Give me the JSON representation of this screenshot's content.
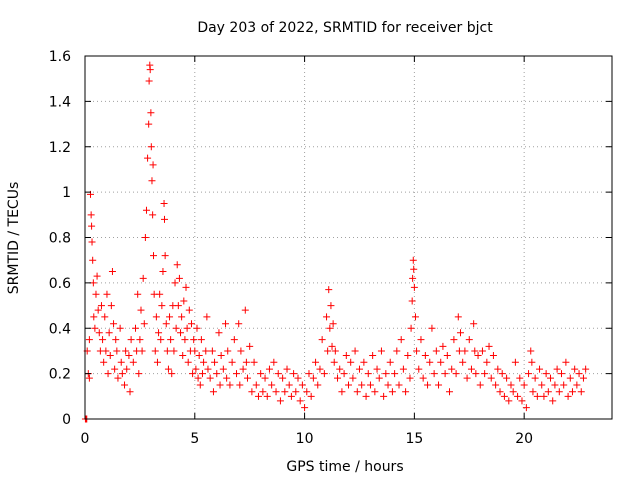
{
  "chart_data": {
    "type": "scatter",
    "title": "Day 203 of 2022, SRMTID for receiver bjct",
    "xlabel": "GPS time / hours",
    "ylabel": "SRMTID / TECUs",
    "xlim": [
      0,
      24
    ],
    "ylim": [
      0,
      1.6
    ],
    "x_ticks": [
      0,
      5,
      10,
      15,
      20
    ],
    "x_tick_labels": [
      "0",
      "5",
      "10",
      "15",
      "20"
    ],
    "y_ticks": [
      0,
      0.2,
      0.4,
      0.6,
      0.8,
      1.0,
      1.2,
      1.4,
      1.6
    ],
    "y_tick_labels": [
      "0",
      "0.2",
      "0.4",
      "0.6",
      "0.8",
      "1",
      "1.2",
      "1.4",
      "1.6"
    ],
    "grid": true,
    "marker": "+",
    "color": "#ff0000",
    "series": [
      {
        "name": "SRMTID",
        "points": [
          [
            0.02,
            0.0
          ],
          [
            0.05,
            0.0
          ],
          [
            0.08,
            0.0
          ],
          [
            0.1,
            0.3
          ],
          [
            0.15,
            0.2
          ],
          [
            0.2,
            0.18
          ],
          [
            0.2,
            0.35
          ],
          [
            0.25,
            0.99
          ],
          [
            0.28,
            0.9
          ],
          [
            0.3,
            0.85
          ],
          [
            0.32,
            0.78
          ],
          [
            0.35,
            0.7
          ],
          [
            0.38,
            0.6
          ],
          [
            0.4,
            0.45
          ],
          [
            0.45,
            0.4
          ],
          [
            0.5,
            0.55
          ],
          [
            0.55,
            0.63
          ],
          [
            0.6,
            0.48
          ],
          [
            0.65,
            0.38
          ],
          [
            0.7,
            0.3
          ],
          [
            0.75,
            0.5
          ],
          [
            0.8,
            0.35
          ],
          [
            0.85,
            0.25
          ],
          [
            0.9,
            0.45
          ],
          [
            0.95,
            0.3
          ],
          [
            1.0,
            0.55
          ],
          [
            1.05,
            0.2
          ],
          [
            1.1,
            0.38
          ],
          [
            1.15,
            0.28
          ],
          [
            1.2,
            0.5
          ],
          [
            1.25,
            0.65
          ],
          [
            1.3,
            0.42
          ],
          [
            1.35,
            0.22
          ],
          [
            1.4,
            0.35
          ],
          [
            1.45,
            0.3
          ],
          [
            1.5,
            0.18
          ],
          [
            1.6,
            0.4
          ],
          [
            1.65,
            0.25
          ],
          [
            1.7,
            0.2
          ],
          [
            1.8,
            0.15
          ],
          [
            1.85,
            0.3
          ],
          [
            1.9,
            0.22
          ],
          [
            2.0,
            0.28
          ],
          [
            2.05,
            0.12
          ],
          [
            2.1,
            0.35
          ],
          [
            2.2,
            0.25
          ],
          [
            2.3,
            0.4
          ],
          [
            2.35,
            0.3
          ],
          [
            2.4,
            0.55
          ],
          [
            2.45,
            0.2
          ],
          [
            2.5,
            0.35
          ],
          [
            2.55,
            0.48
          ],
          [
            2.6,
            0.3
          ],
          [
            2.65,
            0.62
          ],
          [
            2.7,
            0.42
          ],
          [
            2.75,
            0.8
          ],
          [
            2.8,
            0.92
          ],
          [
            2.85,
            1.15
          ],
          [
            2.9,
            1.3
          ],
          [
            2.92,
            1.49
          ],
          [
            2.95,
            1.56
          ],
          [
            2.97,
            1.54
          ],
          [
            3.0,
            1.35
          ],
          [
            3.02,
            1.2
          ],
          [
            3.05,
            1.05
          ],
          [
            3.08,
            0.9
          ],
          [
            3.1,
            1.12
          ],
          [
            3.12,
            0.72
          ],
          [
            3.15,
            0.55
          ],
          [
            3.2,
            0.3
          ],
          [
            3.25,
            0.45
          ],
          [
            3.3,
            0.25
          ],
          [
            3.35,
            0.38
          ],
          [
            3.4,
            0.55
          ],
          [
            3.45,
            0.35
          ],
          [
            3.5,
            0.5
          ],
          [
            3.55,
            0.65
          ],
          [
            3.6,
            0.95
          ],
          [
            3.62,
            0.88
          ],
          [
            3.65,
            0.72
          ],
          [
            3.7,
            0.42
          ],
          [
            3.75,
            0.3
          ],
          [
            3.8,
            0.22
          ],
          [
            3.85,
            0.45
          ],
          [
            3.9,
            0.35
          ],
          [
            3.95,
            0.2
          ],
          [
            4.0,
            0.5
          ],
          [
            4.05,
            0.3
          ],
          [
            4.1,
            0.6
          ],
          [
            4.15,
            0.4
          ],
          [
            4.2,
            0.68
          ],
          [
            4.25,
            0.5
          ],
          [
            4.3,
            0.62
          ],
          [
            4.35,
            0.38
          ],
          [
            4.4,
            0.45
          ],
          [
            4.45,
            0.28
          ],
          [
            4.5,
            0.52
          ],
          [
            4.55,
            0.35
          ],
          [
            4.6,
            0.58
          ],
          [
            4.65,
            0.4
          ],
          [
            4.7,
            0.25
          ],
          [
            4.75,
            0.48
          ],
          [
            4.8,
            0.3
          ],
          [
            4.85,
            0.42
          ],
          [
            4.9,
            0.2
          ],
          [
            4.95,
            0.35
          ],
          [
            5.0,
            0.3
          ],
          [
            5.05,
            0.22
          ],
          [
            5.1,
            0.4
          ],
          [
            5.15,
            0.18
          ],
          [
            5.2,
            0.28
          ],
          [
            5.25,
            0.15
          ],
          [
            5.3,
            0.35
          ],
          [
            5.35,
            0.2
          ],
          [
            5.4,
            0.25
          ],
          [
            5.5,
            0.3
          ],
          [
            5.55,
            0.45
          ],
          [
            5.6,
            0.22
          ],
          [
            5.7,
            0.18
          ],
          [
            5.8,
            0.3
          ],
          [
            5.85,
            0.12
          ],
          [
            5.9,
            0.25
          ],
          [
            6.0,
            0.2
          ],
          [
            6.1,
            0.38
          ],
          [
            6.15,
            0.15
          ],
          [
            6.2,
            0.28
          ],
          [
            6.3,
            0.22
          ],
          [
            6.4,
            0.42
          ],
          [
            6.45,
            0.18
          ],
          [
            6.5,
            0.3
          ],
          [
            6.6,
            0.15
          ],
          [
            6.7,
            0.25
          ],
          [
            6.8,
            0.35
          ],
          [
            6.9,
            0.2
          ],
          [
            7.0,
            0.42
          ],
          [
            7.05,
            0.15
          ],
          [
            7.1,
            0.3
          ],
          [
            7.2,
            0.22
          ],
          [
            7.3,
            0.48
          ],
          [
            7.35,
            0.25
          ],
          [
            7.4,
            0.18
          ],
          [
            7.5,
            0.32
          ],
          [
            7.6,
            0.12
          ],
          [
            7.7,
            0.25
          ],
          [
            7.8,
            0.15
          ],
          [
            7.9,
            0.1
          ],
          [
            8.0,
            0.2
          ],
          [
            8.1,
            0.12
          ],
          [
            8.2,
            0.18
          ],
          [
            8.3,
            0.1
          ],
          [
            8.4,
            0.22
          ],
          [
            8.5,
            0.15
          ],
          [
            8.6,
            0.25
          ],
          [
            8.7,
            0.12
          ],
          [
            8.8,
            0.2
          ],
          [
            8.9,
            0.08
          ],
          [
            9.0,
            0.18
          ],
          [
            9.1,
            0.12
          ],
          [
            9.2,
            0.22
          ],
          [
            9.3,
            0.15
          ],
          [
            9.4,
            0.1
          ],
          [
            9.5,
            0.2
          ],
          [
            9.6,
            0.12
          ],
          [
            9.7,
            0.18
          ],
          [
            9.8,
            0.08
          ],
          [
            9.9,
            0.15
          ],
          [
            10.0,
            0.05
          ],
          [
            10.1,
            0.12
          ],
          [
            10.2,
            0.2
          ],
          [
            10.3,
            0.1
          ],
          [
            10.4,
            0.18
          ],
          [
            10.5,
            0.25
          ],
          [
            10.6,
            0.15
          ],
          [
            10.7,
            0.22
          ],
          [
            10.8,
            0.35
          ],
          [
            10.9,
            0.2
          ],
          [
            11.0,
            0.45
          ],
          [
            11.05,
            0.3
          ],
          [
            11.1,
            0.57
          ],
          [
            11.15,
            0.4
          ],
          [
            11.2,
            0.5
          ],
          [
            11.25,
            0.32
          ],
          [
            11.3,
            0.42
          ],
          [
            11.35,
            0.25
          ],
          [
            11.4,
            0.3
          ],
          [
            11.5,
            0.18
          ],
          [
            11.6,
            0.22
          ],
          [
            11.7,
            0.12
          ],
          [
            11.8,
            0.2
          ],
          [
            11.9,
            0.28
          ],
          [
            12.0,
            0.15
          ],
          [
            12.1,
            0.25
          ],
          [
            12.2,
            0.18
          ],
          [
            12.3,
            0.3
          ],
          [
            12.4,
            0.12
          ],
          [
            12.5,
            0.22
          ],
          [
            12.6,
            0.15
          ],
          [
            12.7,
            0.25
          ],
          [
            12.8,
            0.1
          ],
          [
            12.9,
            0.2
          ],
          [
            13.0,
            0.15
          ],
          [
            13.1,
            0.28
          ],
          [
            13.2,
            0.12
          ],
          [
            13.3,
            0.22
          ],
          [
            13.4,
            0.18
          ],
          [
            13.5,
            0.3
          ],
          [
            13.6,
            0.1
          ],
          [
            13.7,
            0.2
          ],
          [
            13.8,
            0.15
          ],
          [
            13.9,
            0.25
          ],
          [
            14.0,
            0.12
          ],
          [
            14.1,
            0.2
          ],
          [
            14.2,
            0.3
          ],
          [
            14.3,
            0.15
          ],
          [
            14.4,
            0.35
          ],
          [
            14.5,
            0.22
          ],
          [
            14.6,
            0.12
          ],
          [
            14.7,
            0.28
          ],
          [
            14.8,
            0.18
          ],
          [
            14.85,
            0.4
          ],
          [
            14.9,
            0.52
          ],
          [
            14.92,
            0.62
          ],
          [
            14.95,
            0.7
          ],
          [
            14.97,
            0.66
          ],
          [
            15.0,
            0.58
          ],
          [
            15.05,
            0.45
          ],
          [
            15.1,
            0.3
          ],
          [
            15.2,
            0.22
          ],
          [
            15.3,
            0.35
          ],
          [
            15.4,
            0.18
          ],
          [
            15.5,
            0.28
          ],
          [
            15.6,
            0.15
          ],
          [
            15.7,
            0.25
          ],
          [
            15.8,
            0.4
          ],
          [
            15.9,
            0.2
          ],
          [
            16.0,
            0.3
          ],
          [
            16.1,
            0.15
          ],
          [
            16.2,
            0.25
          ],
          [
            16.3,
            0.32
          ],
          [
            16.4,
            0.2
          ],
          [
            16.5,
            0.28
          ],
          [
            16.6,
            0.12
          ],
          [
            16.7,
            0.22
          ],
          [
            16.8,
            0.35
          ],
          [
            16.9,
            0.2
          ],
          [
            17.0,
            0.45
          ],
          [
            17.05,
            0.3
          ],
          [
            17.1,
            0.38
          ],
          [
            17.2,
            0.25
          ],
          [
            17.3,
            0.3
          ],
          [
            17.4,
            0.18
          ],
          [
            17.5,
            0.35
          ],
          [
            17.6,
            0.22
          ],
          [
            17.7,
            0.42
          ],
          [
            17.75,
            0.3
          ],
          [
            17.8,
            0.2
          ],
          [
            17.9,
            0.28
          ],
          [
            18.0,
            0.15
          ],
          [
            18.1,
            0.3
          ],
          [
            18.2,
            0.2
          ],
          [
            18.3,
            0.25
          ],
          [
            18.4,
            0.32
          ],
          [
            18.5,
            0.18
          ],
          [
            18.6,
            0.28
          ],
          [
            18.7,
            0.15
          ],
          [
            18.8,
            0.22
          ],
          [
            18.9,
            0.12
          ],
          [
            19.0,
            0.2
          ],
          [
            19.1,
            0.1
          ],
          [
            19.2,
            0.18
          ],
          [
            19.3,
            0.08
          ],
          [
            19.4,
            0.15
          ],
          [
            19.5,
            0.12
          ],
          [
            19.6,
            0.25
          ],
          [
            19.7,
            0.1
          ],
          [
            19.8,
            0.18
          ],
          [
            19.9,
            0.08
          ],
          [
            20.0,
            0.15
          ],
          [
            20.1,
            0.05
          ],
          [
            20.2,
            0.2
          ],
          [
            20.3,
            0.3
          ],
          [
            20.35,
            0.25
          ],
          [
            20.4,
            0.12
          ],
          [
            20.5,
            0.18
          ],
          [
            20.6,
            0.1
          ],
          [
            20.7,
            0.22
          ],
          [
            20.8,
            0.15
          ],
          [
            20.9,
            0.1
          ],
          [
            21.0,
            0.2
          ],
          [
            21.1,
            0.12
          ],
          [
            21.2,
            0.18
          ],
          [
            21.3,
            0.08
          ],
          [
            21.4,
            0.15
          ],
          [
            21.5,
            0.22
          ],
          [
            21.6,
            0.12
          ],
          [
            21.7,
            0.2
          ],
          [
            21.8,
            0.15
          ],
          [
            21.9,
            0.25
          ],
          [
            22.0,
            0.1
          ],
          [
            22.1,
            0.18
          ],
          [
            22.2,
            0.12
          ],
          [
            22.3,
            0.22
          ],
          [
            22.4,
            0.15
          ],
          [
            22.5,
            0.2
          ],
          [
            22.6,
            0.12
          ],
          [
            22.7,
            0.18
          ],
          [
            22.8,
            0.22
          ]
        ]
      }
    ]
  }
}
